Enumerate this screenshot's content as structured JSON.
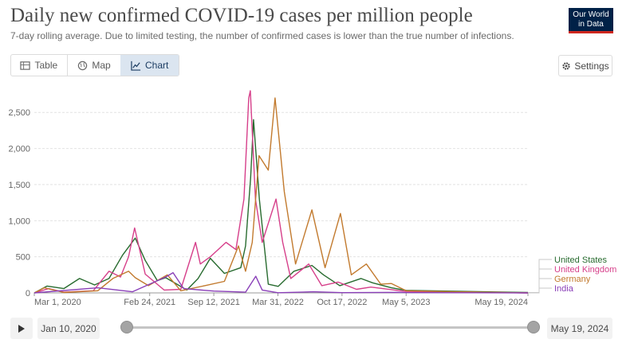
{
  "header": {
    "title": "Daily new confirmed COVID-19 cases per million people",
    "subtitle": "7-day rolling average. Due to limited testing, the number of confirmed cases is lower than the true number of infections.",
    "logo_line1": "Our World",
    "logo_line2": "in Data"
  },
  "tabs": [
    {
      "label": "Table",
      "icon": "table-icon",
      "active": false
    },
    {
      "label": "Map",
      "icon": "globe-icon",
      "active": false
    },
    {
      "label": "Chart",
      "icon": "line-chart-icon",
      "active": true
    }
  ],
  "settings_label": "Settings",
  "timeline": {
    "start_label": "Jan 10, 2020",
    "end_label": "May 19, 2024",
    "start_fraction": 0,
    "end_fraction": 1
  },
  "colors": {
    "United States": "#286b2f",
    "United Kingdom": "#d63f8a",
    "Germany": "#c27a2e",
    "India": "#8a3fb8",
    "accent": "#dbe5f0",
    "logo_bg": "#002147",
    "logo_red": "#ce261e"
  },
  "chart_data": {
    "type": "line",
    "title": "Daily new confirmed COVID-19 cases per million people",
    "xlim": [
      "2020-03-01",
      "2024-05-19"
    ],
    "ylim": [
      0,
      2800
    ],
    "grid": true,
    "legend_placement": "right",
    "y_ticks": [
      "0",
      "500",
      "1,000",
      "1,500",
      "2,000",
      "2,500"
    ],
    "y_tick_values": [
      0,
      500,
      1000,
      1500,
      2000,
      2500
    ],
    "x_ticks": [
      "Mar 1, 2020",
      "Feb 24, 2021",
      "Sep 12, 2021",
      "Mar 31, 2022",
      "Oct 17, 2022",
      "May 5, 2023",
      "May 19, 2024"
    ],
    "x_tick_dates": [
      "2020-03-01",
      "2021-02-24",
      "2021-09-12",
      "2022-03-31",
      "2022-10-17",
      "2023-05-05",
      "2024-05-19"
    ],
    "series": [
      {
        "name": "United States",
        "points": [
          [
            "2020-03-01",
            0
          ],
          [
            "2020-04-10",
            95
          ],
          [
            "2020-06-01",
            60
          ],
          [
            "2020-07-20",
            200
          ],
          [
            "2020-09-05",
            110
          ],
          [
            "2020-10-20",
            200
          ],
          [
            "2020-12-01",
            520
          ],
          [
            "2021-01-10",
            760
          ],
          [
            "2021-02-10",
            450
          ],
          [
            "2021-03-20",
            170
          ],
          [
            "2021-04-15",
            210
          ],
          [
            "2021-06-20",
            40
          ],
          [
            "2021-07-25",
            200
          ],
          [
            "2021-09-01",
            480
          ],
          [
            "2021-10-15",
            270
          ],
          [
            "2021-12-05",
            350
          ],
          [
            "2021-12-20",
            650
          ],
          [
            "2022-01-05",
            1600
          ],
          [
            "2022-01-14",
            2400
          ],
          [
            "2022-02-01",
            1300
          ],
          [
            "2022-03-01",
            120
          ],
          [
            "2022-04-01",
            90
          ],
          [
            "2022-05-20",
            300
          ],
          [
            "2022-07-15",
            380
          ],
          [
            "2022-08-20",
            250
          ],
          [
            "2022-10-10",
            100
          ],
          [
            "2022-12-15",
            200
          ],
          [
            "2023-01-20",
            140
          ],
          [
            "2023-03-20",
            70
          ],
          [
            "2023-05-05",
            35
          ],
          [
            "2024-05-19",
            5
          ]
        ]
      },
      {
        "name": "United Kingdom",
        "points": [
          [
            "2020-03-01",
            0
          ],
          [
            "2020-04-15",
            60
          ],
          [
            "2020-06-01",
            10
          ],
          [
            "2020-09-01",
            30
          ],
          [
            "2020-10-20",
            300
          ],
          [
            "2020-11-25",
            220
          ],
          [
            "2020-12-20",
            500
          ],
          [
            "2021-01-08",
            900
          ],
          [
            "2021-02-10",
            260
          ],
          [
            "2021-04-10",
            40
          ],
          [
            "2021-06-01",
            50
          ],
          [
            "2021-07-17",
            700
          ],
          [
            "2021-08-01",
            400
          ],
          [
            "2021-09-01",
            500
          ],
          [
            "2021-10-20",
            700
          ],
          [
            "2021-11-20",
            600
          ],
          [
            "2021-12-15",
            1300
          ],
          [
            "2021-12-30",
            2700
          ],
          [
            "2022-01-04",
            2800
          ],
          [
            "2022-01-20",
            1300
          ],
          [
            "2022-02-10",
            700
          ],
          [
            "2022-03-25",
            1300
          ],
          [
            "2022-04-15",
            700
          ],
          [
            "2022-05-10",
            200
          ],
          [
            "2022-07-05",
            400
          ],
          [
            "2022-08-15",
            100
          ],
          [
            "2022-10-05",
            150
          ],
          [
            "2022-12-01",
            50
          ],
          [
            "2023-01-15",
            80
          ],
          [
            "2023-05-05",
            20
          ],
          [
            "2023-12-01",
            10
          ],
          [
            "2024-05-19",
            0
          ]
        ]
      },
      {
        "name": "Germany",
        "points": [
          [
            "2020-03-01",
            0
          ],
          [
            "2020-04-01",
            70
          ],
          [
            "2020-06-01",
            5
          ],
          [
            "2020-09-15",
            30
          ],
          [
            "2020-11-01",
            200
          ],
          [
            "2020-12-20",
            300
          ],
          [
            "2021-01-10",
            210
          ],
          [
            "2021-02-20",
            100
          ],
          [
            "2021-04-20",
            250
          ],
          [
            "2021-06-01",
            30
          ],
          [
            "2021-08-15",
            100
          ],
          [
            "2021-10-15",
            160
          ],
          [
            "2021-11-28",
            650
          ],
          [
            "2021-12-20",
            300
          ],
          [
            "2022-01-10",
            700
          ],
          [
            "2022-01-31",
            1900
          ],
          [
            "2022-03-01",
            1700
          ],
          [
            "2022-03-22",
            2700
          ],
          [
            "2022-04-20",
            1400
          ],
          [
            "2022-05-25",
            400
          ],
          [
            "2022-07-15",
            1150
          ],
          [
            "2022-08-25",
            350
          ],
          [
            "2022-10-12",
            1100
          ],
          [
            "2022-11-15",
            250
          ],
          [
            "2023-01-01",
            400
          ],
          [
            "2023-02-15",
            120
          ],
          [
            "2023-03-20",
            130
          ],
          [
            "2023-05-05",
            30
          ],
          [
            "2023-10-01",
            15
          ],
          [
            "2024-05-19",
            0
          ]
        ]
      },
      {
        "name": "India",
        "points": [
          [
            "2020-03-01",
            0
          ],
          [
            "2020-09-15",
            70
          ],
          [
            "2021-01-01",
            15
          ],
          [
            "2021-04-15",
            220
          ],
          [
            "2021-05-08",
            280
          ],
          [
            "2021-06-10",
            60
          ],
          [
            "2021-09-12",
            25
          ],
          [
            "2021-12-20",
            10
          ],
          [
            "2022-01-21",
            230
          ],
          [
            "2022-02-10",
            40
          ],
          [
            "2022-03-31",
            2
          ],
          [
            "2022-07-20",
            15
          ],
          [
            "2022-10-17",
            3
          ],
          [
            "2023-04-15",
            8
          ],
          [
            "2023-05-05",
            4
          ],
          [
            "2024-05-19",
            0
          ]
        ]
      }
    ]
  }
}
